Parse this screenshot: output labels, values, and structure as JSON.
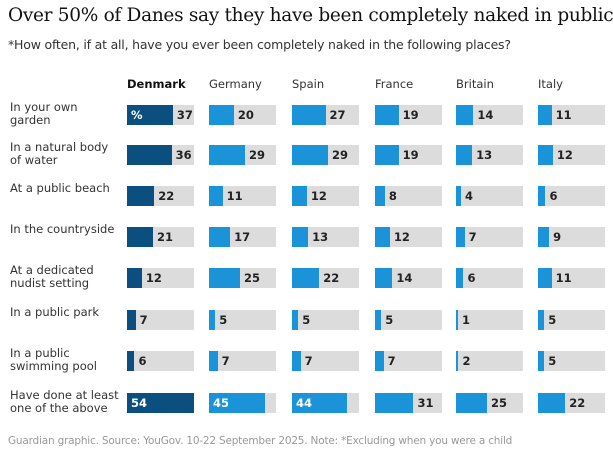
{
  "title": "Over 50% of Danes say they have been completely naked in public",
  "subtitle": "*How often, if at all, have you ever been completely naked in the following places?",
  "footer": "Guardian graphic. Source: YouGov. 10-22 September 2025. Note: *Excluding when you were a child",
  "colors": {
    "highlight": "#0a4f80",
    "bar": "#1a93d8",
    "track": "#dcdcdc"
  },
  "chart_data": {
    "type": "bar",
    "unit_label": "%",
    "xlim": [
      0,
      54
    ],
    "categories": [
      "In your own garden",
      "In a natural body of water",
      "At a public beach",
      "In the countryside",
      "At a dedicated nudist setting",
      "In a public park",
      "In a public swimming pool",
      "Have done at least one of the above"
    ],
    "series": [
      {
        "name": "Denmark",
        "highlight": true,
        "values": [
          37,
          36,
          22,
          21,
          12,
          7,
          6,
          54
        ]
      },
      {
        "name": "Germany",
        "values": [
          20,
          29,
          11,
          17,
          25,
          5,
          7,
          45
        ]
      },
      {
        "name": "Spain",
        "values": [
          27,
          29,
          12,
          13,
          22,
          5,
          7,
          44
        ]
      },
      {
        "name": "France",
        "values": [
          19,
          19,
          8,
          12,
          14,
          5,
          7,
          31
        ]
      },
      {
        "name": "Britain",
        "values": [
          14,
          13,
          4,
          7,
          6,
          1,
          2,
          25
        ]
      },
      {
        "name": "Italy",
        "values": [
          11,
          12,
          6,
          9,
          11,
          5,
          5,
          22
        ]
      }
    ]
  }
}
